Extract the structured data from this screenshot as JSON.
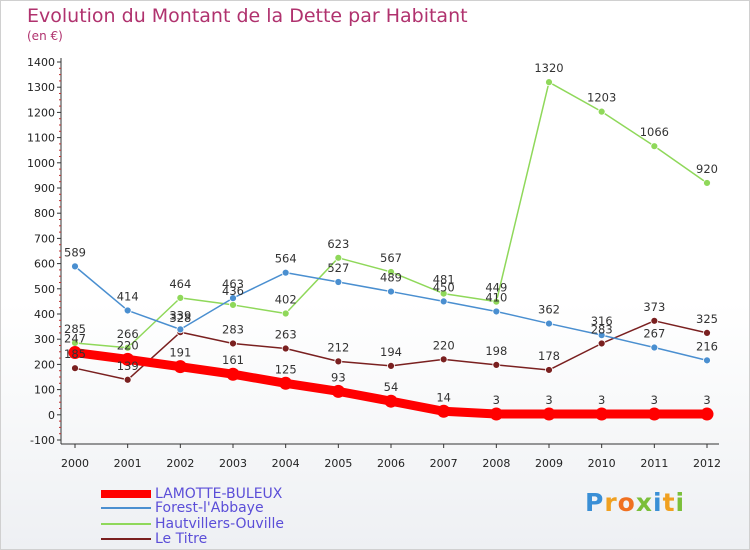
{
  "title": "Evolution du Montant de la Dette par Habitant",
  "subtitle": "(en €)",
  "logo": {
    "letters": [
      "P",
      "r",
      "o",
      "x",
      "i",
      "t",
      "i"
    ],
    "colors": [
      "#3a8fd6",
      "#f0a020",
      "#f07020",
      "#7bbf3a",
      "#3a8fd6",
      "#f0a020",
      "#7bbf3a"
    ]
  },
  "chart_data": {
    "type": "line",
    "x": [
      "2000",
      "2001",
      "2002",
      "2003",
      "2004",
      "2005",
      "2006",
      "2007",
      "2008",
      "2009",
      "2010",
      "2011",
      "2012"
    ],
    "ylim": [
      -100,
      1400
    ],
    "yticks": [
      -100,
      0,
      100,
      200,
      300,
      400,
      500,
      600,
      700,
      800,
      900,
      1000,
      1100,
      1200,
      1300,
      1400
    ],
    "grid": false,
    "legend_position": "bottom-left",
    "series": [
      {
        "name": "LAMOTTE-BULEUX",
        "color": "#ff0000",
        "values": [
          247,
          220,
          191,
          161,
          125,
          93,
          54,
          14,
          3,
          3,
          3,
          3,
          3
        ]
      },
      {
        "name": "Forest-l'Abbaye",
        "color": "#4a8fd0",
        "values": [
          589,
          414,
          339,
          463,
          564,
          527,
          489,
          450,
          410,
          362,
          316,
          267,
          216
        ]
      },
      {
        "name": "Hautvillers-Ouville",
        "color": "#8fd85a",
        "values": [
          285,
          266,
          464,
          436,
          402,
          623,
          567,
          481,
          449,
          1320,
          1203,
          1066,
          920
        ]
      },
      {
        "name": "Le Titre",
        "color": "#7a2020",
        "values": [
          185,
          139,
          328,
          283,
          263,
          212,
          194,
          220,
          198,
          178,
          283,
          373,
          325
        ]
      }
    ]
  }
}
